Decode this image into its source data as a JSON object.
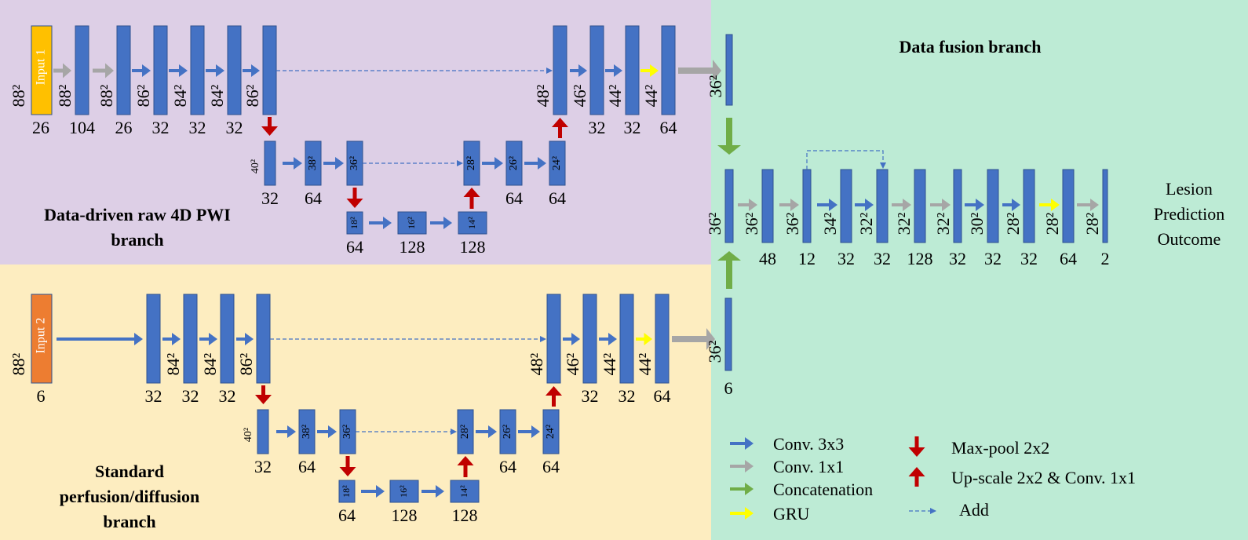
{
  "colors": {
    "top_bg": "#ddcfe6",
    "bottom_bg": "#fdedc0",
    "right_bg": "#bdebd5",
    "block": "#4472c4",
    "input1": "#ffc000",
    "input2": "#ed7d31",
    "conv3": "#4472c4",
    "conv1": "#a6a6a6",
    "concat": "#70ad47",
    "gru": "#ffff00",
    "pool": "#c00000"
  },
  "titles": {
    "fusion": "Data fusion branch",
    "raw_line1": "Data-driven raw 4D PWI",
    "raw_line2": "branch",
    "std_line1": "Standard",
    "std_line2": "perfusion/diffusion",
    "std_line3": "branch"
  },
  "outcome": {
    "line1": "Lesion",
    "line2": "Prediction",
    "line3": "Outcome"
  },
  "input_labels": {
    "input1": "Input 1",
    "input2": "Input 2"
  },
  "top_branch": {
    "input": {
      "size": "88²",
      "channels": "26"
    },
    "enc": [
      {
        "size": "88²",
        "channels": "104"
      },
      {
        "size": "88²",
        "channels": "26"
      },
      {
        "size": "86²",
        "channels": "32"
      },
      {
        "size": "84²",
        "channels": "32"
      },
      {
        "size": "84²",
        "channels": "32"
      },
      {
        "size": "86²",
        "channels": ""
      }
    ],
    "dec": [
      {
        "size": "48²",
        "channels": ""
      },
      {
        "size": "46²",
        "channels": "32"
      },
      {
        "size": "44²",
        "channels": "32"
      },
      {
        "size": "44²",
        "channels": "64"
      }
    ],
    "mid": [
      {
        "size": "40²",
        "channels": "32"
      },
      {
        "size": "38²",
        "channels": "64"
      },
      {
        "size": "36²",
        "channels": ""
      },
      {
        "size": "28²",
        "channels": ""
      },
      {
        "size": "26²",
        "channels": "64"
      },
      {
        "size": "24²",
        "channels": "64"
      }
    ],
    "bottom": [
      {
        "size": "18²",
        "channels": "64"
      },
      {
        "size": "16²",
        "channels": "128"
      },
      {
        "size": "14²",
        "channels": "128"
      }
    ],
    "output": {
      "size": "36²",
      "channels": ""
    }
  },
  "bottom_branch": {
    "input": {
      "size": "88²",
      "channels": "6"
    },
    "enc": [
      {
        "size": "",
        "channels": "32"
      },
      {
        "size": "84²",
        "channels": "32"
      },
      {
        "size": "84²",
        "channels": "32"
      },
      {
        "size": "86²",
        "channels": ""
      }
    ],
    "dec": [
      {
        "size": "48²",
        "channels": ""
      },
      {
        "size": "46²",
        "channels": "32"
      },
      {
        "size": "44²",
        "channels": "32"
      },
      {
        "size": "44²",
        "channels": "64"
      }
    ],
    "mid": [
      {
        "size": "40²",
        "channels": "32"
      },
      {
        "size": "38²",
        "channels": "64"
      },
      {
        "size": "36²",
        "channels": ""
      },
      {
        "size": "28²",
        "channels": ""
      },
      {
        "size": "26²",
        "channels": "64"
      },
      {
        "size": "24²",
        "channels": "64"
      }
    ],
    "bottom": [
      {
        "size": "18²",
        "channels": "64"
      },
      {
        "size": "16²",
        "channels": "128"
      },
      {
        "size": "14²",
        "channels": "128"
      }
    ],
    "output": {
      "size": "36²",
      "channels": "6"
    }
  },
  "fusion_blocks": [
    {
      "size": "36²",
      "channels": ""
    },
    {
      "size": "36²",
      "channels": "48"
    },
    {
      "size": "36²",
      "channels": "12"
    },
    {
      "size": "34²",
      "channels": "32"
    },
    {
      "size": "32²",
      "channels": "32"
    },
    {
      "size": "32²",
      "channels": "128"
    },
    {
      "size": "32²",
      "channels": "32"
    },
    {
      "size": "30²",
      "channels": "32"
    },
    {
      "size": "28²",
      "channels": "32"
    },
    {
      "size": "28²",
      "channels": "64"
    },
    {
      "size": "28²",
      "channels": "2"
    }
  ],
  "legend": {
    "conv3": "Conv. 3x3",
    "conv1": "Conv. 1x1",
    "concat": "Concatenation",
    "gru": "GRU",
    "pool": "Max-pool 2x2",
    "up": "Up-scale 2x2 & Conv. 1x1",
    "add": "Add"
  }
}
